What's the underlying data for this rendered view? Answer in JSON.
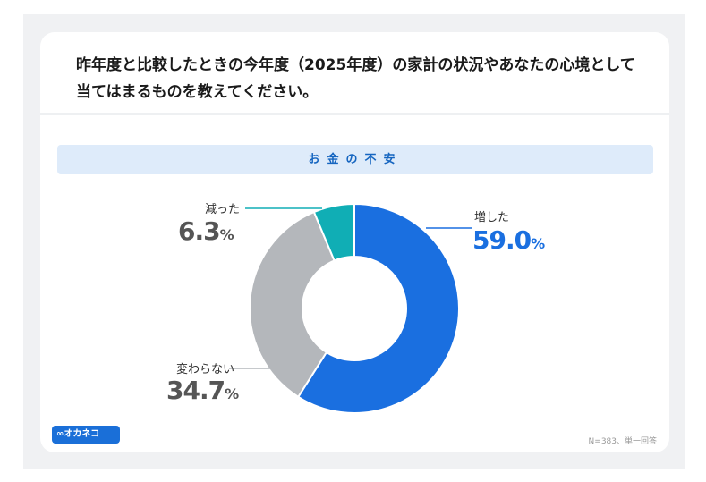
{
  "title": "昨年度と比較したときの今年度（2025年度）の家計の状況やあなたの心境として当てはまるものを教えてください。",
  "banner": "お金の不安",
  "logo": "∞オカネコ",
  "note": "N=383、単一回答",
  "chart_data": {
    "type": "pie",
    "donut": true,
    "categories": [
      "増した",
      "変わらない",
      "減った"
    ],
    "values": [
      59.0,
      34.7,
      6.3
    ],
    "labels": [
      "59.0",
      "34.7",
      "6.3"
    ],
    "unit": "%",
    "colors": [
      "#1a6fe0",
      "#b4b7bb",
      "#10aeb5"
    ]
  }
}
